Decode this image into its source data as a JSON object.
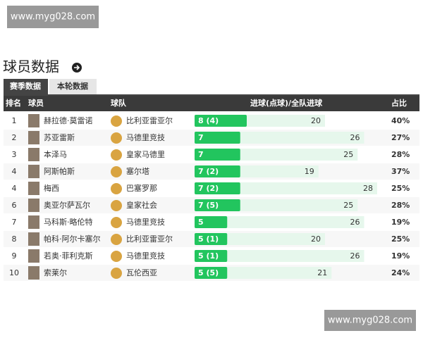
{
  "watermark_top": "www.myg028.com",
  "watermark_bottom": "www.myg028.com",
  "header": {
    "title": "球员数据"
  },
  "tabs": [
    "赛季数据",
    "本轮数据"
  ],
  "table": {
    "columns": [
      "排名",
      "球员",
      "球队",
      "进球(点球)/全队进球",
      "占比"
    ],
    "rows": [
      {
        "rank": "1",
        "player": "赫拉德·莫雷诺",
        "team": "比利亚雷亚尔",
        "goals": {
          "value": 8,
          "label": "8 (4)"
        },
        "team_goals": 20,
        "share": "40%"
      },
      {
        "rank": "2",
        "player": "苏亚雷斯",
        "team": "马德里竞技",
        "goals": {
          "value": 7,
          "label": "7"
        },
        "team_goals": 26,
        "share": "27%"
      },
      {
        "rank": "3",
        "player": "本泽马",
        "team": "皇家马德里",
        "goals": {
          "value": 7,
          "label": "7"
        },
        "team_goals": 25,
        "share": "28%"
      },
      {
        "rank": "4",
        "player": "阿斯帕斯",
        "team": "塞尔塔",
        "goals": {
          "value": 7,
          "label": "7 (2)"
        },
        "team_goals": 19,
        "share": "37%"
      },
      {
        "rank": "4",
        "player": "梅西",
        "team": "巴塞罗那",
        "goals": {
          "value": 7,
          "label": "7 (2)"
        },
        "team_goals": 28,
        "share": "25%"
      },
      {
        "rank": "6",
        "player": "奥亚尔萨瓦尔",
        "team": "皇家社会",
        "goals": {
          "value": 7,
          "label": "7 (5)"
        },
        "team_goals": 25,
        "share": "28%"
      },
      {
        "rank": "7",
        "player": "马科斯·略伦特",
        "team": "马德里竞技",
        "goals": {
          "value": 5,
          "label": "5"
        },
        "team_goals": 26,
        "share": "19%"
      },
      {
        "rank": "8",
        "player": "帕科·阿尔卡塞尔",
        "team": "比利亚雷亚尔",
        "goals": {
          "value": 5,
          "label": "5 (1)"
        },
        "team_goals": 20,
        "share": "25%"
      },
      {
        "rank": "9",
        "player": "若奥·菲利克斯",
        "team": "马德里竞技",
        "goals": {
          "value": 5,
          "label": "5 (1)"
        },
        "team_goals": 26,
        "share": "19%"
      },
      {
        "rank": "10",
        "player": "索莱尔",
        "team": "瓦伦西亚",
        "goals": {
          "value": 5,
          "label": "5 (5)"
        },
        "team_goals": 21,
        "share": "24%"
      }
    ]
  }
}
